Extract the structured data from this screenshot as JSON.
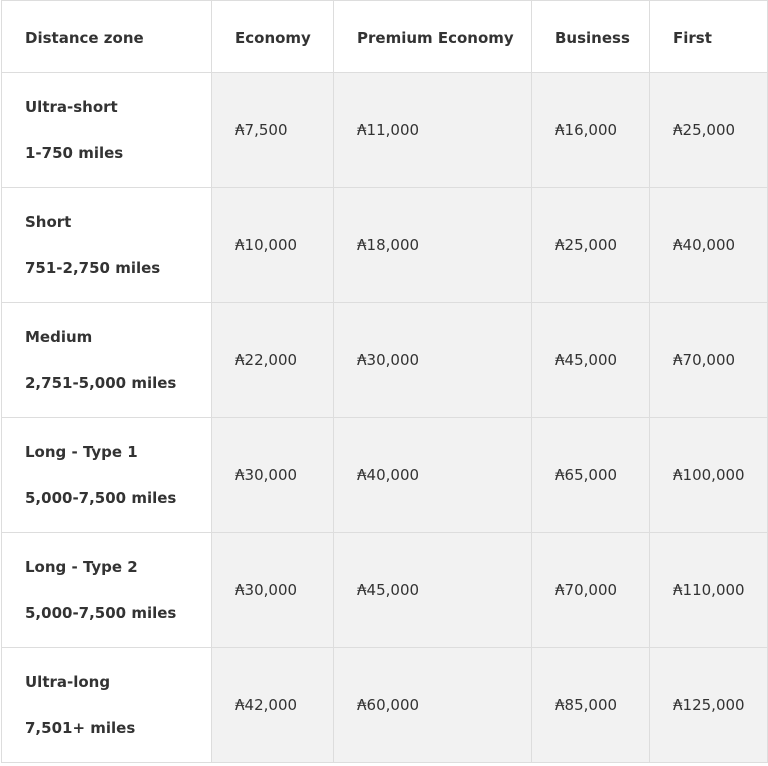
{
  "table": {
    "header": [
      "Distance zone",
      "Economy",
      "Premium Economy",
      "Business",
      "First"
    ],
    "rows": [
      {
        "zone": "Ultra-short",
        "range": "1-750 miles",
        "values": [
          "₳7,500",
          "₳11,000",
          "₳16,000",
          "₳25,000"
        ]
      },
      {
        "zone": "Short",
        "range": "751-2,750 miles",
        "values": [
          "₳10,000",
          "₳18,000",
          "₳25,000",
          "₳40,000"
        ]
      },
      {
        "zone": "Medium",
        "range": "2,751-5,000 miles",
        "values": [
          "₳22,000",
          "₳30,000",
          "₳45,000",
          "₳70,000"
        ]
      },
      {
        "zone": "Long - Type 1",
        "range": "5,000-7,500 miles",
        "values": [
          "₳30,000",
          "₳40,000",
          "₳65,000",
          "₳100,000"
        ]
      },
      {
        "zone": "Long - Type 2",
        "range": "5,000-7,500 miles",
        "values": [
          "₳30,000",
          "₳45,000",
          "₳70,000",
          "₳110,000"
        ]
      },
      {
        "zone": "Ultra-long",
        "range": "7,501+ miles",
        "values": [
          "₳42,000",
          "₳60,000",
          "₳85,000",
          "₳125,000"
        ]
      }
    ]
  }
}
